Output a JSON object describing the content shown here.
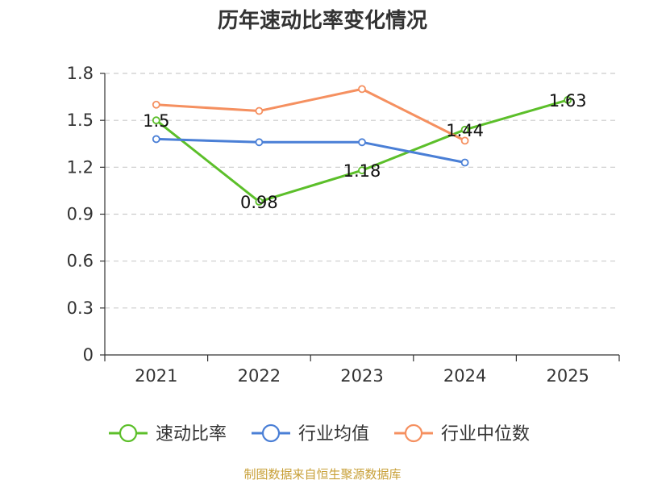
{
  "chart_data": {
    "type": "line",
    "title": "历年速动比率变化情况",
    "categories": [
      "2021",
      "2022",
      "2023",
      "2024",
      "2025"
    ],
    "ylim": [
      0,
      1.8
    ],
    "yticks": [
      0,
      0.3,
      0.6,
      0.9,
      1.2,
      1.5,
      1.8
    ],
    "ytick_labels": [
      "0",
      "0.3",
      "0.6",
      "0.9",
      "1.2",
      "1.5",
      "1.8"
    ],
    "grid": true,
    "legend_position": "bottom",
    "series": [
      {
        "name": "速动比率",
        "color": "#5cbf2a",
        "values": [
          1.5,
          0.98,
          1.18,
          1.44,
          1.63
        ],
        "labels": [
          "1.5",
          "0.98",
          "1.18",
          "1.44",
          "1.63"
        ],
        "show_labels": true
      },
      {
        "name": "行业均值",
        "color": "#4a7fd6",
        "values": [
          1.38,
          1.36,
          1.36,
          1.23,
          null
        ],
        "show_labels": false
      },
      {
        "name": "行业中位数",
        "color": "#f59060",
        "values": [
          1.6,
          1.56,
          1.7,
          1.37,
          null
        ],
        "show_labels": false
      }
    ]
  },
  "source_text": "制图数据来自恒生聚源数据库"
}
